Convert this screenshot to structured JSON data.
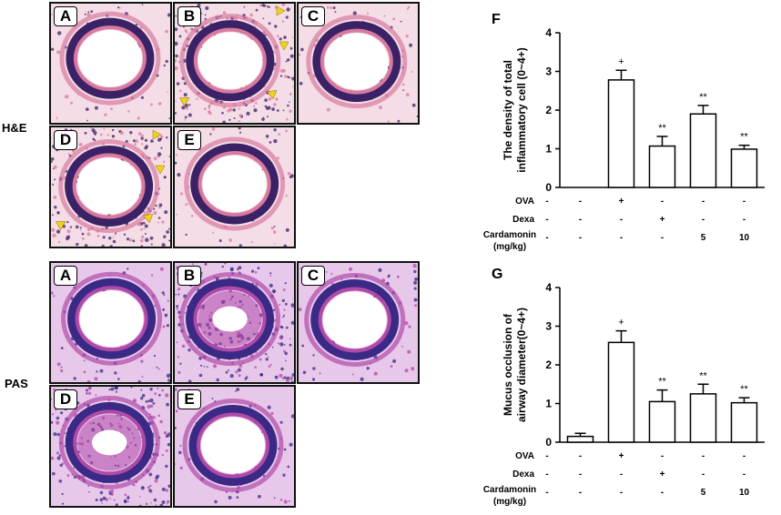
{
  "row_labels": {
    "he": "H&E",
    "pas": "PAS"
  },
  "he_panels": [
    {
      "label": "A",
      "condition": "normal"
    },
    {
      "label": "B",
      "condition": "inflamed"
    },
    {
      "label": "C",
      "condition": "normal"
    },
    {
      "label": "D",
      "condition": "inflamed"
    },
    {
      "label": "E",
      "condition": "mild"
    }
  ],
  "pas_panels": [
    {
      "label": "A",
      "condition": "normal"
    },
    {
      "label": "B",
      "condition": "mucus"
    },
    {
      "label": "C",
      "condition": "normal"
    },
    {
      "label": "D",
      "condition": "mucus"
    },
    {
      "label": "E",
      "condition": "mild"
    }
  ],
  "colors": {
    "he_tissue": "#d87aa0",
    "he_nuclei": "#3b2266",
    "he_background": "#f4dde6",
    "pas_tissue": "#b04aa8",
    "pas_nuclei": "#3a2a86",
    "pas_background": "#e8c8ea",
    "arrow": "#f2d21a",
    "bar_fill": "#ffffff",
    "bar_stroke": "#000000"
  },
  "icons": {
    "arrow": "yellow-arrow-marker"
  },
  "chart_data": [
    {
      "panel_label": "F",
      "type": "bar",
      "ylabel_lines": [
        "The density of total",
        "inflammatory cell (0~4+)"
      ],
      "ylim": [
        0,
        4
      ],
      "yticks": [
        "0",
        "1",
        "2",
        "3",
        "4"
      ],
      "values": [
        0,
        2.78,
        1.07,
        1.9,
        0.99
      ],
      "errors": [
        0,
        0.25,
        0.25,
        0.22,
        0.1
      ],
      "markers": [
        "",
        "+",
        "**",
        "**",
        "**"
      ],
      "treatment_rows": [
        {
          "label": "OVA",
          "cells": [
            "-",
            "+",
            "-",
            "-",
            "-"
          ]
        },
        {
          "label": "Dexa",
          "cells": [
            "-",
            "-",
            "+",
            "-",
            "-"
          ]
        },
        {
          "label": "Cardamonin",
          "label2": "(mg/kg)",
          "cells": [
            "-",
            "-",
            "-",
            "5",
            "10"
          ]
        }
      ]
    },
    {
      "panel_label": "G",
      "type": "bar",
      "ylabel_lines": [
        "Mucus occlusion of",
        "airway diameter(0~4+)"
      ],
      "ylim": [
        0,
        4
      ],
      "yticks": [
        "0",
        "1",
        "2",
        "3",
        "4"
      ],
      "values": [
        0.15,
        2.58,
        1.05,
        1.25,
        1.02
      ],
      "errors": [
        0.08,
        0.3,
        0.3,
        0.25,
        0.13
      ],
      "markers": [
        "",
        "+",
        "**",
        "**",
        "**"
      ],
      "treatment_rows": [
        {
          "label": "OVA",
          "cells": [
            "-",
            "+",
            "-",
            "-",
            "-"
          ]
        },
        {
          "label": "Dexa",
          "cells": [
            "-",
            "-",
            "+",
            "-",
            "-"
          ]
        },
        {
          "label": "Cardamonin",
          "label2": "(mg/kg)",
          "cells": [
            "-",
            "-",
            "-",
            "5",
            "10"
          ]
        }
      ]
    }
  ]
}
